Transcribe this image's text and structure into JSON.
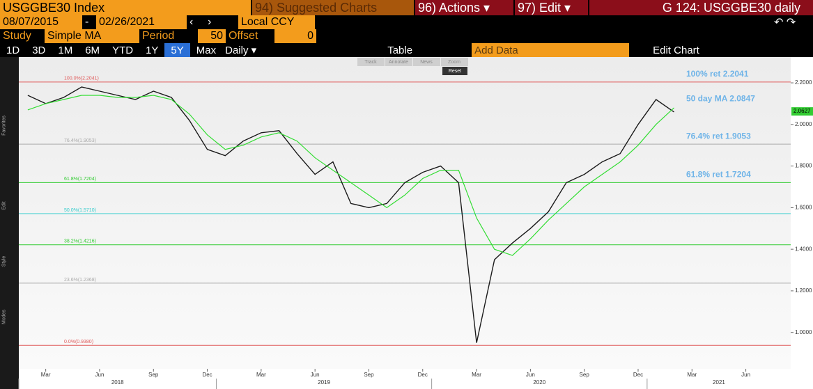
{
  "toolbar": {
    "ticker": "USGGBE30 Index",
    "suggested": "94) Suggested Charts",
    "actions": "96) Actions ▾",
    "edit": "97) Edit ▾",
    "page_title": "G 124: USGGBE30 daily",
    "start_date": "08/07/2015",
    "date_sep": "-",
    "end_date": "02/26/2021",
    "currency": "Local CCY",
    "study_label": "Study",
    "study": "Simple MA",
    "period_label": "Period",
    "period": "50",
    "offset_label": "Offset",
    "offset": "0",
    "ranges": [
      "1D",
      "3D",
      "1M",
      "6M",
      "YTD",
      "1Y",
      "5Y",
      "Max"
    ],
    "active_range": "5Y",
    "frequency": "Daily ▾",
    "table": "Table",
    "add_data": "Add Data",
    "edit_chart": "Edit Chart",
    "chart_tools": [
      "Track",
      "Annotate",
      "News",
      "Zoom"
    ],
    "reset": "Reset",
    "sidebar_groups": [
      "Favorites",
      "Edit",
      "Style",
      "Modes"
    ]
  },
  "chart_data": {
    "type": "line",
    "x": [
      "2018-02",
      "2018-03",
      "2018-04",
      "2018-05",
      "2018-06",
      "2018-07",
      "2018-08",
      "2018-09",
      "2018-10",
      "2018-11",
      "2018-12",
      "2019-01",
      "2019-02",
      "2019-03",
      "2019-04",
      "2019-05",
      "2019-06",
      "2019-07",
      "2019-08",
      "2019-09",
      "2019-10",
      "2019-11",
      "2019-12",
      "2020-01",
      "2020-02",
      "2020-03",
      "2020-04",
      "2020-05",
      "2020-06",
      "2020-07",
      "2020-08",
      "2020-09",
      "2020-10",
      "2020-11",
      "2020-12",
      "2021-01",
      "2021-02"
    ],
    "series": [
      {
        "color": "#1a1a1a",
        "values": [
          2.14,
          2.1,
          2.13,
          2.18,
          2.16,
          2.14,
          2.12,
          2.16,
          2.13,
          2.02,
          1.88,
          1.85,
          1.92,
          1.96,
          1.97,
          1.86,
          1.76,
          1.82,
          1.62,
          1.6,
          1.62,
          1.72,
          1.77,
          1.8,
          1.72,
          0.95,
          1.35,
          1.43,
          1.5,
          1.58,
          1.72,
          1.76,
          1.82,
          1.86,
          2.0,
          2.12,
          2.06
        ]
      },
      {
        "color": "#33dd33",
        "values": [
          2.07,
          2.1,
          2.12,
          2.14,
          2.14,
          2.13,
          2.13,
          2.14,
          2.12,
          2.05,
          1.95,
          1.88,
          1.9,
          1.94,
          1.96,
          1.92,
          1.84,
          1.78,
          1.72,
          1.66,
          1.6,
          1.66,
          1.74,
          1.78,
          1.78,
          1.55,
          1.4,
          1.37,
          1.45,
          1.54,
          1.62,
          1.7,
          1.76,
          1.82,
          1.9,
          2.0,
          2.08
        ]
      }
    ],
    "xlim": [
      "2018-02",
      "2021-09"
    ],
    "xticks": [
      {
        "value": "2018-03",
        "label": "Mar"
      },
      {
        "value": "2018-06",
        "label": "Jun"
      },
      {
        "value": "2018-09",
        "label": "Sep"
      },
      {
        "value": "2018-12",
        "label": "Dec"
      },
      {
        "value": "2019-03",
        "label": "Mar"
      },
      {
        "value": "2019-06",
        "label": "Jun"
      },
      {
        "value": "2019-09",
        "label": "Sep"
      },
      {
        "value": "2019-12",
        "label": "Dec"
      },
      {
        "value": "2020-03",
        "label": "Mar"
      },
      {
        "value": "2020-06",
        "label": "Jun"
      },
      {
        "value": "2020-09",
        "label": "Sep"
      },
      {
        "value": "2020-12",
        "label": "Dec"
      },
      {
        "value": "2021-03",
        "label": "Mar"
      },
      {
        "value": "2021-06",
        "label": "Jun"
      }
    ],
    "year_labels": [
      "2018",
      "2019",
      "2020",
      "2021"
    ],
    "ylim": [
      0.825,
      2.324
    ],
    "yticks": [
      {
        "value": 1,
        "label": "1.0000"
      },
      {
        "value": 1.2,
        "label": "1.2000"
      },
      {
        "value": 1.4,
        "label": "1.4000"
      },
      {
        "value": 1.6,
        "label": "1.6000"
      },
      {
        "value": 1.8,
        "label": "1.8000"
      },
      {
        "value": 2,
        "label": "2.0000"
      },
      {
        "value": 2.2,
        "label": "2.2000"
      }
    ],
    "levels": [
      {
        "value": 2.2041,
        "label": "100.0%(2.2041)",
        "color": "#e05a5a"
      },
      {
        "value": 1.9053,
        "label": "76.4%(1.9053)",
        "color": "#aaaaaa"
      },
      {
        "value": 1.7204,
        "label": "61.8%(1.7204)",
        "color": "#33cc33"
      },
      {
        "value": 1.571,
        "label": "50.0%(1.5710)",
        "color": "#33cccc"
      },
      {
        "value": 1.4216,
        "label": "38.2%(1.4216)",
        "color": "#33cc33"
      },
      {
        "value": 1.2368,
        "label": "23.6%(1.2368)",
        "color": "#aaaaaa"
      },
      {
        "value": 0.938,
        "label": "0.0%(0.9380)",
        "color": "#e05a5a"
      }
    ],
    "annotations": [
      {
        "text": "100% ret 2.2041",
        "value": 2.2041
      },
      {
        "text": "50 day MA 2.0847",
        "value": 2.0847
      },
      {
        "text": "76.4% ret 1.9053",
        "value": 1.9053
      },
      {
        "text": "61.8% ret 1.7204",
        "value": 1.7204
      }
    ],
    "last_price": 2.0627
  }
}
